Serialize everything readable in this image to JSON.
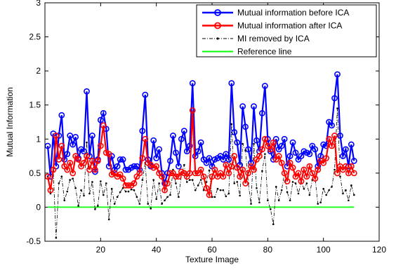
{
  "chart_data": {
    "type": "line",
    "title": "",
    "xlabel": "Texture Image",
    "ylabel": "Mutual Information",
    "xlim": [
      0,
      120
    ],
    "ylim": [
      -0.5,
      3
    ],
    "xticks": [
      20,
      40,
      60,
      80,
      100,
      120
    ],
    "yticks": [
      -0.5,
      0,
      0.5,
      1,
      1.5,
      2,
      2.5,
      3
    ],
    "grid": false,
    "legend_position": "top-right",
    "x": [
      1,
      2,
      3,
      4,
      5,
      6,
      7,
      8,
      9,
      10,
      11,
      12,
      13,
      14,
      15,
      16,
      17,
      18,
      19,
      20,
      21,
      22,
      23,
      24,
      25,
      26,
      27,
      28,
      29,
      30,
      31,
      32,
      33,
      34,
      35,
      36,
      37,
      38,
      39,
      40,
      41,
      42,
      43,
      44,
      45,
      46,
      47,
      48,
      49,
      50,
      51,
      52,
      53,
      54,
      55,
      56,
      57,
      58,
      59,
      60,
      61,
      62,
      63,
      64,
      65,
      66,
      67,
      68,
      69,
      70,
      71,
      72,
      73,
      74,
      75,
      76,
      77,
      78,
      79,
      80,
      81,
      82,
      83,
      84,
      85,
      86,
      87,
      88,
      89,
      90,
      91,
      92,
      93,
      94,
      95,
      96,
      97,
      98,
      99,
      100,
      101,
      102,
      103,
      104,
      105,
      106,
      107,
      108,
      109,
      110,
      111
    ],
    "series": [
      {
        "name": "Mutual information before ICA",
        "color": "#0000ff",
        "marker": "circle",
        "values": [
          0.9,
          0.45,
          1.08,
          0.6,
          1.05,
          1.35,
          0.7,
          0.78,
          1.05,
          0.92,
          1.03,
          0.72,
          0.85,
          0.82,
          1.7,
          0.75,
          1.05,
          0.52,
          0.7,
          1.28,
          1.38,
          1.15,
          0.6,
          0.75,
          0.55,
          0.6,
          0.7,
          0.7,
          0.55,
          0.55,
          0.58,
          0.6,
          0.6,
          0.55,
          1.12,
          1.65,
          0.7,
          0.6,
          0.98,
          0.72,
          0.85,
          0.5,
          0.35,
          0.5,
          0.68,
          1.05,
          0.8,
          0.6,
          1.0,
          1.12,
          0.82,
          0.9,
          1.82,
          0.75,
          0.82,
          0.95,
          0.7,
          0.65,
          0.72,
          0.6,
          0.7,
          0.72,
          0.75,
          0.7,
          0.78,
          0.7,
          1.82,
          1.1,
          0.95,
          0.62,
          1.48,
          1.18,
          0.85,
          0.65,
          1.48,
          0.98,
          0.82,
          1.38,
          1.78,
          1.0,
          0.82,
          0.7,
          1.0,
          0.85,
          0.9,
          1.0,
          0.6,
          0.75,
          0.95,
          0.8,
          0.7,
          0.75,
          0.82,
          0.8,
          0.78,
          0.9,
          0.85,
          0.6,
          0.75,
          0.92,
          0.9,
          1.25,
          1.2,
          1.6,
          1.95,
          1.05,
          0.75,
          0.85,
          0.6,
          0.92,
          0.68
        ]
      },
      {
        "name": "Mutual information after ICA",
        "color": "#ff0000",
        "marker": "circle",
        "values": [
          0.45,
          0.25,
          0.55,
          1.05,
          0.7,
          0.9,
          0.6,
          0.55,
          0.65,
          0.5,
          0.75,
          0.7,
          0.6,
          0.65,
          0.75,
          0.55,
          0.68,
          0.55,
          0.68,
          0.9,
          1.2,
          0.8,
          0.78,
          0.48,
          0.5,
          0.45,
          0.48,
          0.42,
          0.32,
          0.32,
          0.32,
          0.35,
          0.45,
          0.5,
          0.72,
          1.0,
          0.65,
          0.62,
          0.58,
          0.6,
          0.5,
          0.45,
          0.25,
          0.35,
          0.5,
          0.5,
          0.45,
          0.45,
          0.52,
          0.5,
          0.45,
          0.5,
          1.42,
          0.5,
          0.5,
          0.55,
          0.45,
          0.28,
          0.18,
          0.45,
          0.55,
          0.45,
          0.5,
          0.45,
          0.62,
          0.5,
          0.6,
          0.75,
          0.58,
          0.45,
          0.55,
          0.35,
          0.5,
          0.6,
          0.55,
          0.7,
          0.75,
          0.85,
          1.0,
          0.9,
          0.85,
          0.95,
          0.7,
          0.75,
          0.65,
          0.5,
          0.38,
          0.65,
          0.58,
          0.45,
          0.5,
          0.38,
          0.55,
          0.45,
          0.6,
          0.5,
          0.42,
          0.55,
          0.68,
          0.65,
          0.72,
          1.0,
          0.9,
          1.05,
          0.5,
          0.6,
          0.55,
          0.6,
          0.5,
          0.6,
          0.5
        ]
      },
      {
        "name": "MI removed by ICA",
        "color": "#000000",
        "marker": "dot",
        "values": [
          0.45,
          0.2,
          0.53,
          -0.45,
          0.35,
          0.45,
          0.1,
          0.23,
          0.4,
          0.42,
          0.28,
          0.02,
          0.25,
          0.17,
          0.95,
          0.2,
          0.37,
          -0.03,
          0.02,
          0.38,
          0.18,
          0.35,
          -0.18,
          0.27,
          0.05,
          0.15,
          0.22,
          0.28,
          0.23,
          0.23,
          0.26,
          0.25,
          0.15,
          0.05,
          0.4,
          0.65,
          0.05,
          -0.02,
          0.4,
          0.12,
          0.35,
          0.05,
          0.1,
          0.15,
          0.18,
          0.55,
          0.35,
          0.15,
          0.48,
          0.62,
          0.37,
          0.4,
          0.4,
          0.25,
          0.32,
          0.4,
          0.25,
          0.37,
          0.54,
          0.15,
          0.15,
          0.27,
          0.25,
          0.25,
          0.16,
          0.2,
          1.22,
          0.35,
          0.37,
          0.17,
          0.93,
          0.83,
          0.35,
          0.05,
          0.93,
          0.28,
          0.07,
          0.53,
          0.78,
          0.1,
          -0.03,
          -0.25,
          0.3,
          0.1,
          0.25,
          0.5,
          0.22,
          0.1,
          0.37,
          0.35,
          0.2,
          0.37,
          0.27,
          0.35,
          0.18,
          0.4,
          0.43,
          0.05,
          0.07,
          0.27,
          0.18,
          0.25,
          0.3,
          0.55,
          1.45,
          0.45,
          0.2,
          0.25,
          0.1,
          0.32,
          0.18
        ]
      },
      {
        "name": "Reference line",
        "color": "#00ff00",
        "marker": "none",
        "values": [
          0,
          0,
          0,
          0,
          0,
          0,
          0,
          0,
          0,
          0,
          0,
          0,
          0,
          0,
          0,
          0,
          0,
          0,
          0,
          0,
          0,
          0,
          0,
          0,
          0,
          0,
          0,
          0,
          0,
          0,
          0,
          0,
          0,
          0,
          0,
          0,
          0,
          0,
          0,
          0,
          0,
          0,
          0,
          0,
          0,
          0,
          0,
          0,
          0,
          0,
          0,
          0,
          0,
          0,
          0,
          0,
          0,
          0,
          0,
          0,
          0,
          0,
          0,
          0,
          0,
          0,
          0,
          0,
          0,
          0,
          0,
          0,
          0,
          0,
          0,
          0,
          0,
          0,
          0,
          0,
          0,
          0,
          0,
          0,
          0,
          0,
          0,
          0,
          0,
          0,
          0,
          0,
          0,
          0,
          0,
          0,
          0,
          0,
          0,
          0,
          0,
          0,
          0,
          0,
          0,
          0,
          0,
          0,
          0,
          0,
          0
        ]
      }
    ]
  }
}
